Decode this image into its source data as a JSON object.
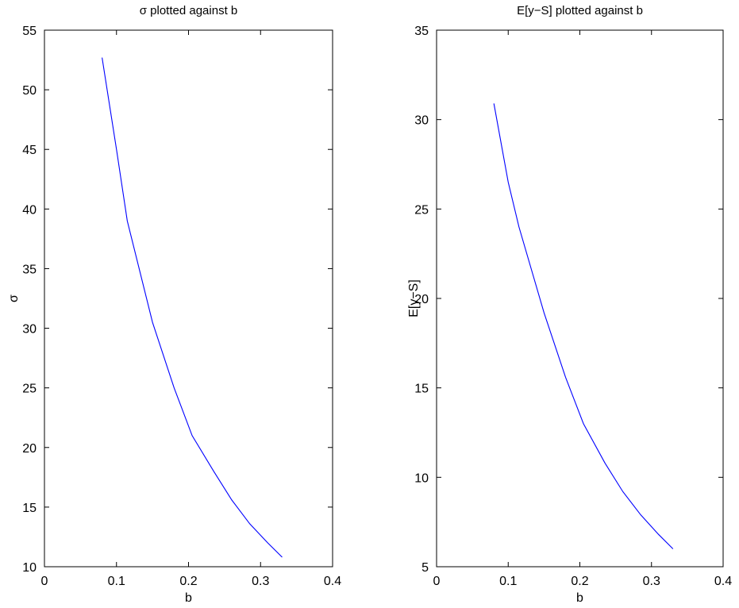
{
  "chart_data": [
    {
      "type": "line",
      "title": "σ plotted against b",
      "xlabel": "b",
      "ylabel": "σ",
      "xlim": [
        0,
        0.4
      ],
      "ylim": [
        10,
        55
      ],
      "xticks": [
        0,
        0.1,
        0.2,
        0.3,
        0.4
      ],
      "yticks": [
        10,
        15,
        20,
        25,
        30,
        35,
        40,
        45,
        50,
        55
      ],
      "xtick_labels": [
        "0",
        "0.1",
        "0.2",
        "0.3",
        "0.4"
      ],
      "ytick_labels": [
        "10",
        "15",
        "20",
        "25",
        "30",
        "35",
        "40",
        "45",
        "50",
        "55"
      ],
      "grid": false,
      "series": [
        {
          "color": "#0000ff",
          "x": [
            0.08,
            0.1,
            0.115,
            0.15,
            0.18,
            0.205,
            0.235,
            0.26,
            0.285,
            0.31,
            0.33
          ],
          "y": [
            52.7,
            45.0,
            39.0,
            30.5,
            25.0,
            21.0,
            18.0,
            15.6,
            13.6,
            12.0,
            10.8
          ]
        }
      ]
    },
    {
      "type": "line",
      "title": "E[y−S] plotted against b",
      "xlabel": "b",
      "ylabel": "E[y−S]",
      "xlim": [
        0,
        0.4
      ],
      "ylim": [
        5,
        35
      ],
      "xticks": [
        0,
        0.1,
        0.2,
        0.3,
        0.4
      ],
      "yticks": [
        5,
        10,
        15,
        20,
        25,
        30,
        35
      ],
      "xtick_labels": [
        "0",
        "0.1",
        "0.2",
        "0.3",
        "0.4"
      ],
      "ytick_labels": [
        "5",
        "10",
        "15",
        "20",
        "25",
        "30",
        "35"
      ],
      "grid": false,
      "series": [
        {
          "color": "#0000ff",
          "x": [
            0.08,
            0.1,
            0.115,
            0.15,
            0.18,
            0.205,
            0.235,
            0.26,
            0.285,
            0.31,
            0.33
          ],
          "y": [
            30.9,
            26.5,
            24.0,
            19.2,
            15.6,
            13.0,
            10.8,
            9.2,
            7.9,
            6.8,
            6.0
          ]
        }
      ]
    }
  ]
}
